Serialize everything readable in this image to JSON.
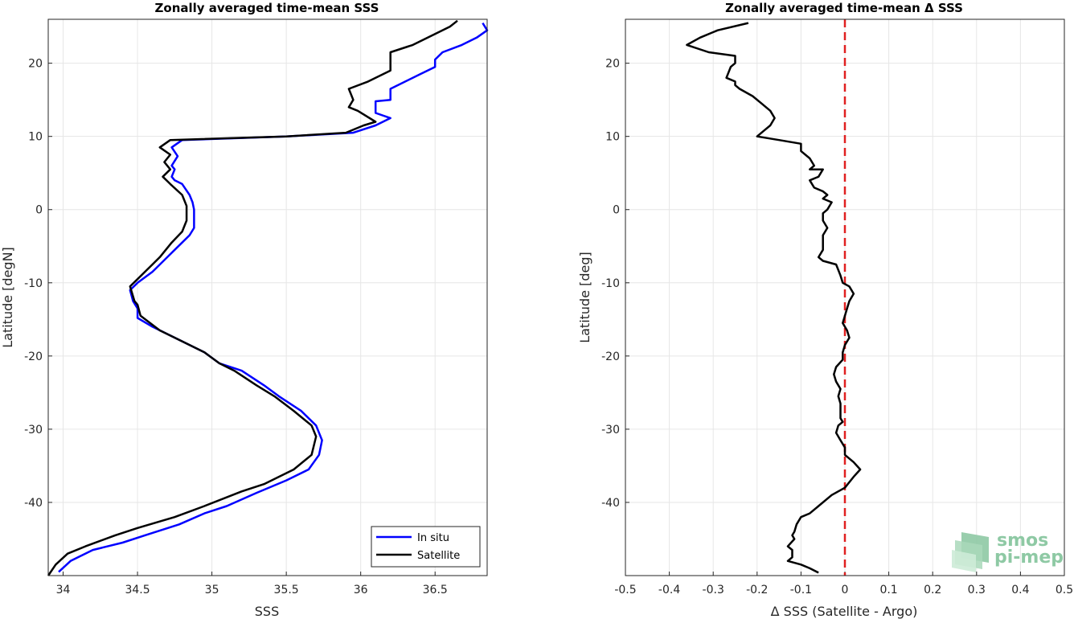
{
  "chart_data": [
    {
      "type": "line",
      "title": "Zonally averaged time-mean SSS",
      "xlabel": "SSS",
      "ylabel": "Latitude [degN]",
      "xlim": [
        33.9,
        36.85
      ],
      "ylim": [
        -50,
        26
      ],
      "xticks": [
        34,
        34.5,
        35,
        35.5,
        36,
        36.5
      ],
      "xtick_labels": [
        "34",
        "34.5",
        "35",
        "35.5",
        "36",
        "36.5"
      ],
      "yticks": [
        -40,
        -30,
        -20,
        -10,
        0,
        10,
        20
      ],
      "ytick_labels": [
        "-40",
        "-30",
        "-20",
        "-10",
        "0",
        "10",
        "20"
      ],
      "grid": true,
      "legend_position": "bottom-right",
      "series": [
        {
          "name": "In situ",
          "color": "#0000ff",
          "points": [
            [
              33.97,
              -49.5
            ],
            [
              34.05,
              -48
            ],
            [
              34.2,
              -46.5
            ],
            [
              34.4,
              -45.5
            ],
            [
              34.55,
              -44.5
            ],
            [
              34.78,
              -43
            ],
            [
              34.95,
              -41.5
            ],
            [
              35.1,
              -40.5
            ],
            [
              35.3,
              -38.7
            ],
            [
              35.5,
              -37
            ],
            [
              35.65,
              -35.5
            ],
            [
              35.72,
              -33.5
            ],
            [
              35.74,
              -31.5
            ],
            [
              35.7,
              -29.5
            ],
            [
              35.6,
              -27.5
            ],
            [
              35.45,
              -25.5
            ],
            [
              35.35,
              -24
            ],
            [
              35.2,
              -22
            ],
            [
              35.05,
              -21
            ],
            [
              34.95,
              -19.5
            ],
            [
              34.8,
              -18
            ],
            [
              34.6,
              -16
            ],
            [
              34.5,
              -14.8
            ],
            [
              34.5,
              -13.5
            ],
            [
              34.47,
              -12.5
            ],
            [
              34.45,
              -11
            ],
            [
              34.5,
              -10
            ],
            [
              34.6,
              -8.5
            ],
            [
              34.7,
              -6.5
            ],
            [
              34.75,
              -5.5
            ],
            [
              34.85,
              -3.5
            ],
            [
              34.88,
              -2.5
            ],
            [
              34.88,
              0
            ],
            [
              34.87,
              1
            ],
            [
              34.85,
              2
            ],
            [
              34.8,
              3.5
            ],
            [
              34.75,
              4
            ],
            [
              34.73,
              4.5
            ],
            [
              34.75,
              5.5
            ],
            [
              34.73,
              6
            ],
            [
              34.77,
              7.3
            ],
            [
              34.73,
              8.5
            ],
            [
              34.8,
              9.5
            ],
            [
              35.5,
              10
            ],
            [
              35.95,
              10.5
            ],
            [
              36.1,
              11.5
            ],
            [
              36.2,
              12.5
            ],
            [
              36.1,
              13.2
            ],
            [
              36.1,
              14.8
            ],
            [
              36.2,
              15
            ],
            [
              36.2,
              16.5
            ],
            [
              36.4,
              18.5
            ],
            [
              36.5,
              19.5
            ],
            [
              36.5,
              20.5
            ],
            [
              36.55,
              21.5
            ],
            [
              36.68,
              22.5
            ],
            [
              36.78,
              23.5
            ],
            [
              36.85,
              24.5
            ],
            [
              36.82,
              25.5
            ]
          ]
        },
        {
          "name": "Satellite",
          "color": "#000000",
          "points": [
            [
              33.9,
              -50
            ],
            [
              33.95,
              -48.5
            ],
            [
              34.03,
              -47
            ],
            [
              34.15,
              -46
            ],
            [
              34.35,
              -44.5
            ],
            [
              34.5,
              -43.5
            ],
            [
              34.75,
              -42
            ],
            [
              34.95,
              -40.5
            ],
            [
              35.2,
              -38.5
            ],
            [
              35.35,
              -37.5
            ],
            [
              35.55,
              -35.5
            ],
            [
              35.67,
              -33.5
            ],
            [
              35.7,
              -31
            ],
            [
              35.67,
              -29.5
            ],
            [
              35.55,
              -27.5
            ],
            [
              35.42,
              -25.5
            ],
            [
              35.3,
              -24
            ],
            [
              35.15,
              -22
            ],
            [
              35.05,
              -21
            ],
            [
              34.95,
              -19.5
            ],
            [
              34.8,
              -18
            ],
            [
              34.65,
              -16.5
            ],
            [
              34.52,
              -14.5
            ],
            [
              34.5,
              -13
            ],
            [
              34.48,
              -12.5
            ],
            [
              34.45,
              -10.5
            ],
            [
              34.5,
              -9.5
            ],
            [
              34.55,
              -8.5
            ],
            [
              34.6,
              -7.5
            ],
            [
              34.65,
              -6.5
            ],
            [
              34.73,
              -4.5
            ],
            [
              34.8,
              -3
            ],
            [
              34.83,
              -1.5
            ],
            [
              34.83,
              0.5
            ],
            [
              34.8,
              2
            ],
            [
              34.72,
              3.5
            ],
            [
              34.67,
              4.5
            ],
            [
              34.72,
              5.5
            ],
            [
              34.68,
              6.5
            ],
            [
              34.72,
              7.5
            ],
            [
              34.65,
              8.5
            ],
            [
              34.72,
              9.5
            ],
            [
              35.5,
              10
            ],
            [
              35.9,
              10.5
            ],
            [
              36.02,
              11.5
            ],
            [
              36.1,
              12
            ],
            [
              35.98,
              13.5
            ],
            [
              35.92,
              14
            ],
            [
              35.95,
              15
            ],
            [
              35.92,
              16.5
            ],
            [
              36.05,
              17.5
            ],
            [
              36.2,
              19
            ],
            [
              36.2,
              20.5
            ],
            [
              36.2,
              21.5
            ],
            [
              36.35,
              22.5
            ],
            [
              36.5,
              24
            ],
            [
              36.6,
              25
            ],
            [
              36.65,
              25.8
            ]
          ]
        }
      ]
    },
    {
      "type": "line",
      "title": "Zonally averaged time-mean Δ SSS",
      "xlabel": "Δ SSS (Satellite - Argo)",
      "ylabel": "Latitude [deg]",
      "xlim": [
        -0.5,
        0.5
      ],
      "ylim": [
        -50,
        26
      ],
      "xticks": [
        -0.5,
        -0.4,
        -0.3,
        -0.2,
        -0.1,
        0,
        0.1,
        0.2,
        0.3,
        0.4,
        0.5
      ],
      "xtick_labels": [
        "-0.5",
        "-0.4",
        "-0.3",
        "-0.2",
        "-0.1",
        "0",
        "0.1",
        "0.2",
        "0.3",
        "0.4",
        "0.5"
      ],
      "yticks": [
        -40,
        -30,
        -20,
        -10,
        0,
        10,
        20
      ],
      "ytick_labels": [
        "-40",
        "-30",
        "-20",
        "-10",
        "0",
        "10",
        "20"
      ],
      "grid": true,
      "reference_line": {
        "x": 0,
        "color": "#e02020",
        "style": "dashed"
      },
      "series": [
        {
          "color": "#000000",
          "points": [
            [
              -0.22,
              25.5
            ],
            [
              -0.29,
              24.5
            ],
            [
              -0.33,
              23.5
            ],
            [
              -0.36,
              22.5
            ],
            [
              -0.31,
              21.5
            ],
            [
              -0.25,
              21
            ],
            [
              -0.25,
              20
            ],
            [
              -0.26,
              19.5
            ],
            [
              -0.27,
              18
            ],
            [
              -0.25,
              17.5
            ],
            [
              -0.25,
              17
            ],
            [
              -0.24,
              16.5
            ],
            [
              -0.21,
              15.5
            ],
            [
              -0.19,
              14.5
            ],
            [
              -0.17,
              13.5
            ],
            [
              -0.16,
              12.5
            ],
            [
              -0.17,
              11.5
            ],
            [
              -0.18,
              11
            ],
            [
              -0.19,
              10.5
            ],
            [
              -0.2,
              10
            ],
            [
              -0.15,
              9.5
            ],
            [
              -0.1,
              9
            ],
            [
              -0.1,
              8
            ],
            [
              -0.08,
              7
            ],
            [
              -0.07,
              6
            ],
            [
              -0.08,
              5.5
            ],
            [
              -0.05,
              5.5
            ],
            [
              -0.06,
              4.5
            ],
            [
              -0.08,
              4
            ],
            [
              -0.07,
              3
            ],
            [
              -0.05,
              2.5
            ],
            [
              -0.04,
              2
            ],
            [
              -0.05,
              1.5
            ],
            [
              -0.03,
              1
            ],
            [
              -0.04,
              0
            ],
            [
              -0.05,
              -0.5
            ],
            [
              -0.05,
              -1.5
            ],
            [
              -0.04,
              -2.5
            ],
            [
              -0.05,
              -3.5
            ],
            [
              -0.05,
              -5.5
            ],
            [
              -0.06,
              -6.5
            ],
            [
              -0.05,
              -7
            ],
            [
              -0.02,
              -7.5
            ],
            [
              -0.01,
              -9
            ],
            [
              -0.005,
              -10
            ],
            [
              0.01,
              -10.5
            ],
            [
              0.02,
              -11.5
            ],
            [
              0.01,
              -12.5
            ],
            [
              0.005,
              -13.5
            ],
            [
              0,
              -14.5
            ],
            [
              -0.005,
              -15.5
            ],
            [
              0.005,
              -16.5
            ],
            [
              0.01,
              -17.5
            ],
            [
              0,
              -18.5
            ],
            [
              -0.005,
              -19.5
            ],
            [
              -0.005,
              -20.5
            ],
            [
              -0.02,
              -21.5
            ],
            [
              -0.025,
              -22.5
            ],
            [
              -0.02,
              -23.5
            ],
            [
              -0.01,
              -24.5
            ],
            [
              -0.015,
              -25.5
            ],
            [
              -0.01,
              -26.5
            ],
            [
              -0.01,
              -28.5
            ],
            [
              -0.005,
              -29
            ],
            [
              -0.015,
              -29.5
            ],
            [
              -0.02,
              -30.5
            ],
            [
              -0.01,
              -31.5
            ],
            [
              0,
              -32.5
            ],
            [
              0,
              -33.5
            ],
            [
              0.02,
              -34.5
            ],
            [
              0.035,
              -35.5
            ],
            [
              0.02,
              -36.5
            ],
            [
              0,
              -38
            ],
            [
              -0.03,
              -39
            ],
            [
              -0.06,
              -40.5
            ],
            [
              -0.08,
              -41.5
            ],
            [
              -0.1,
              -42
            ],
            [
              -0.11,
              -43
            ],
            [
              -0.115,
              -44
            ],
            [
              -0.12,
              -44.5
            ],
            [
              -0.115,
              -45
            ],
            [
              -0.13,
              -46
            ],
            [
              -0.12,
              -46.5
            ],
            [
              -0.12,
              -47.5
            ],
            [
              -0.13,
              -48
            ],
            [
              -0.1,
              -48.5
            ],
            [
              -0.08,
              -49
            ],
            [
              -0.06,
              -49.6
            ]
          ]
        }
      ]
    }
  ],
  "logo": {
    "line1": "smos",
    "line2": "pi-mep"
  }
}
